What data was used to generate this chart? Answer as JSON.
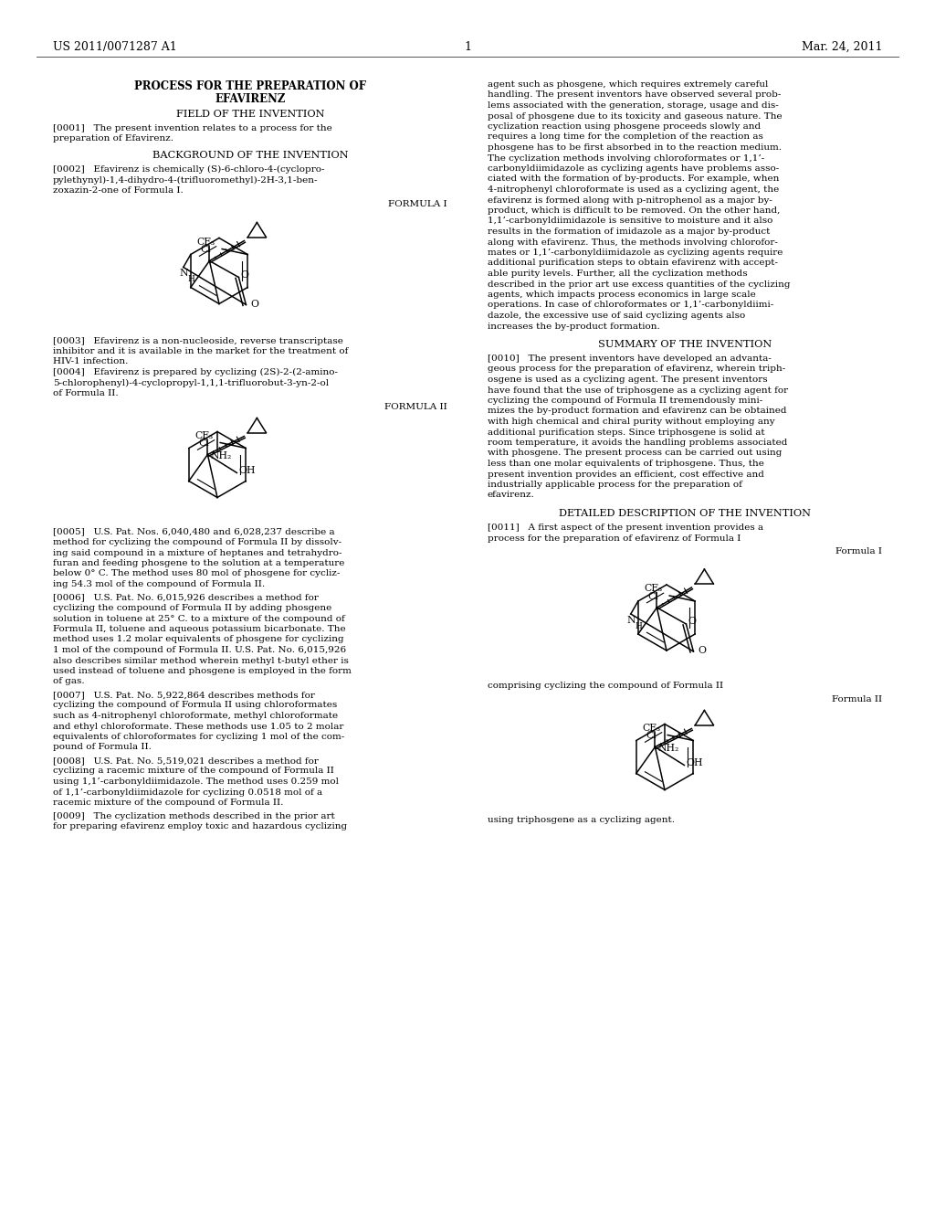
{
  "bg_color": "#ffffff",
  "text_color": "#1a1a1a",
  "header_left": "US 2011/0071287 A1",
  "header_right": "Mar. 24, 2011",
  "page_number": "1",
  "title_line1": "PROCESS FOR THE PREPARATION OF",
  "title_line2": "EFAVIRENZ",
  "section1": "FIELD OF THE INVENTION",
  "section2": "BACKGROUND OF THE INVENTION",
  "formula_i_label": "FORMULA I",
  "formula_ii_label": "FORMULA II",
  "formula_i_label2": "Formula I",
  "formula_ii_label2": "Formula II",
  "section_summary": "SUMMARY OF THE INVENTION",
  "section_detailed": "DETAILED DESCRIPTION OF THE INVENTION",
  "left_col_lines": [
    "[0001]   The present invention relates to a process for the",
    "preparation of Efavirenz.",
    "",
    "SECT:BACKGROUND OF THE INVENTION",
    "",
    "[0002]   Efavirenz is chemically (S)-6-chloro-4-(cyclopro-",
    "pylethynyl)-1,4-dihydro-4-(trifluoromethyl)-2H-3,1-ben-",
    "zoxazin-2-one of Formula I."
  ],
  "left_after_f1": [
    "[0003]   Efavirenz is a non-nucleoside, reverse transcriptase",
    "inhibitor and it is available in the market for the treatment of",
    "HIV-1 infection.",
    "[0004]   Efavirenz is prepared by cyclizing (2S)-2-(2-amino-",
    "5-chlorophenyl)-4-cyclopropyl-1,1,1-trifluorobut-3-yn-2-ol",
    "of Formula II."
  ],
  "left_after_f2": [
    "[0005]   U.S. Pat. Nos. 6,040,480 and 6,028,237 describe a",
    "method for cyclizing the compound of Formula II by dissolv-",
    "ing said compound in a mixture of heptanes and tetrahydro-",
    "furan and feeding phosgene to the solution at a temperature",
    "below 0° C. The method uses 80 mol of phosgene for cycliz-",
    "ing 54.3 mol of the compound of Formula II.",
    "[0006]   U.S. Pat. No. 6,015,926 describes a method for",
    "cyclizing the compound of Formula II by adding phosgene",
    "solution in toluene at 25° C. to a mixture of the compound of",
    "Formula II, toluene and aqueous potassium bicarbonate. The",
    "method uses 1.2 molar equivalents of phosgene for cyclizing",
    "1 mol of the compound of Formula II. U.S. Pat. No. 6,015,926",
    "also describes similar method wherein methyl t-butyl ether is",
    "used instead of toluene and phosgene is employed in the form",
    "of gas.",
    "[0007]   U.S. Pat. No. 5,922,864 describes methods for",
    "cyclizing the compound of Formula II using chloroformates",
    "such as 4-nitrophenyl chloroformate, methyl chloroformate",
    "and ethyl chloroformate. These methods use 1.05 to 2 molar",
    "equivalents of chloroformates for cyclizing 1 mol of the com-",
    "pound of Formula II.",
    "[0008]   U.S. Pat. No. 5,519,021 describes a method for",
    "cyclizing a racemic mixture of the compound of Formula II",
    "using 1,1’-carbonyldiimidazole. The method uses 0.259 mol",
    "of 1,1’-carbonyldiimidazole for cyclizing 0.0518 mol of a",
    "racemic mixture of the compound of Formula II.",
    "[0009]   The cyclization methods described in the prior art",
    "for preparing efavirenz employ toxic and hazardous cyclizing"
  ],
  "right_col_lines": [
    "agent such as phosgene, which requires extremely careful",
    "handling. The present inventors have observed several prob-",
    "lems associated with the generation, storage, usage and dis-",
    "posal of phosgene due to its toxicity and gaseous nature. The",
    "cyclization reaction using phosgene proceeds slowly and",
    "requires a long time for the completion of the reaction as",
    "phosgene has to be first absorbed in to the reaction medium.",
    "The cyclization methods involving chloroformates or 1,1’-",
    "carbonyldiimidazole as cyclizing agents have problems asso-",
    "ciated with the formation of by-products. For example, when",
    "4-nitrophenyl chloroformate is used as a cyclizing agent, the",
    "efavirenz is formed along with p-nitrophenol as a major by-",
    "product, which is difficult to be removed. On the other hand,",
    "1,1’-carbonyldiimidazole is sensitive to moisture and it also",
    "results in the formation of imidazole as a major by-product",
    "along with efavirenz. Thus, the methods involving chlorofor-",
    "mates or 1,1’-carbonyldiimidazole as cyclizing agents require",
    "additional purification steps to obtain efavirenz with accept-",
    "able purity levels. Further, all the cyclization methods",
    "described in the prior art use excess quantities of the cyclizing",
    "agents, which impacts process economics in large scale",
    "operations. In case of chloroformates or 1,1’-carbonyldiimi-",
    "dazole, the excessive use of said cyclizing agents also",
    "increases the by-product formation."
  ],
  "right_summary_lines": [
    "[0010]   The present inventors have developed an advanta-",
    "geous process for the preparation of efavirenz, wherein triph-",
    "osgene is used as a cyclizing agent. The present inventors",
    "have found that the use of triphosgene as a cyclizing agent for",
    "cyclizing the compound of Formula II tremendously mini-",
    "mizes the by-product formation and efavirenz can be obtained",
    "with high chemical and chiral purity without employing any",
    "additional purification steps. Since triphosgene is solid at",
    "room temperature, it avoids the handling problems associated",
    "with phosgene. The present process can be carried out using",
    "less than one molar equivalents of triphosgene. Thus, the",
    "present invention provides an efficient, cost effective and",
    "industrially applicable process for the preparation of",
    "efavirenz."
  ],
  "right_detailed_lines": [
    "[0011]   A first aspect of the present invention provides a",
    "process for the preparation of efavirenz of Formula I"
  ],
  "right_comprising": "comprising cyclizing the compound of Formula II",
  "right_using": "using triphosgene as a cyclizing agent."
}
